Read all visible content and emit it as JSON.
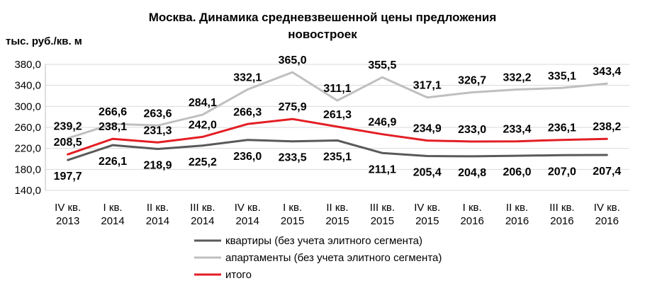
{
  "chart_data": {
    "type": "line",
    "title_line1": "Москва. Динамика средневзвешенной цены предложения",
    "title_line2": "новостроек",
    "ylabel": "тыс. руб./кв. м",
    "ylim": [
      140,
      380
    ],
    "yticks": [
      "380,0",
      "340,0",
      "300,0",
      "260,0",
      "220,0",
      "180,0",
      "140,0"
    ],
    "ytick_values": [
      380,
      340,
      300,
      260,
      220,
      180,
      140
    ],
    "categories": [
      [
        "IV кв.",
        "2013"
      ],
      [
        "I кв.",
        "2014"
      ],
      [
        "II кв.",
        "2014"
      ],
      [
        "III кв.",
        "2014"
      ],
      [
        "IV кв.",
        "2014"
      ],
      [
        "I кв.",
        "2015"
      ],
      [
        "II кв.",
        "2015"
      ],
      [
        "III кв.",
        "2015"
      ],
      [
        "IV кв.",
        "2015"
      ],
      [
        "I кв.",
        "2016"
      ],
      [
        "II кв.",
        "2016"
      ],
      [
        "III кв.",
        "2016"
      ],
      [
        "IV кв.",
        "2016"
      ]
    ],
    "grid": true,
    "legend_position": "bottom",
    "series": [
      {
        "name": "квартиры (без учета элитного сегмента)",
        "color": "#595959",
        "values": [
          197.7,
          226.1,
          218.9,
          225.2,
          236.0,
          233.5,
          235.1,
          211.1,
          205.4,
          204.8,
          206.0,
          207.0,
          207.4
        ],
        "labels": [
          "197,7",
          "226,1",
          "218,9",
          "225,2",
          "236,0",
          "233,5",
          "235,1",
          "211,1",
          "205,4",
          "204,8",
          "206,0",
          "207,0",
          "207,4"
        ]
      },
      {
        "name": "апартаменты (без учета элитного сегмента)",
        "color": "#bfbfbf",
        "values": [
          239.2,
          266.6,
          263.6,
          284.1,
          332.1,
          365.0,
          311.1,
          355.5,
          317.1,
          326.7,
          332.2,
          335.1,
          343.4
        ],
        "labels": [
          "239,2",
          "266,6",
          "263,6",
          "284,1",
          "332,1",
          "365,0",
          "311,1",
          "355,5",
          "317,1",
          "326,7",
          "332,2",
          "335,1",
          "343,4"
        ]
      },
      {
        "name": "итого",
        "color": "#e31e24",
        "values": [
          208.5,
          238.1,
          231.3,
          242.0,
          266.3,
          275.9,
          261.3,
          246.9,
          234.9,
          233.0,
          233.4,
          236.1,
          238.2
        ],
        "labels": [
          "208,5",
          "238,1",
          "231,3",
          "242,0",
          "266,3",
          "275,9",
          "261,3",
          "246,9",
          "234,9",
          "233,0",
          "233,4",
          "236,1",
          "238,2"
        ]
      }
    ]
  }
}
